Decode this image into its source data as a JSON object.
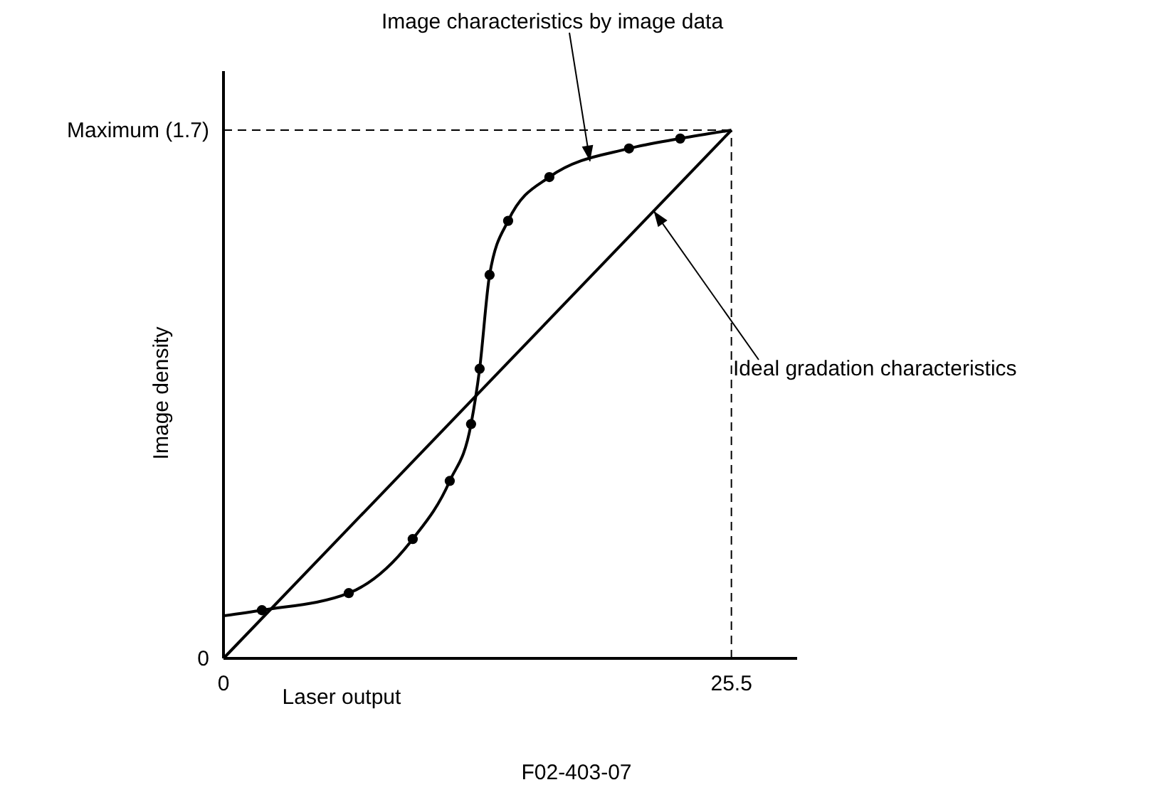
{
  "chart_data": {
    "type": "line",
    "xlabel": "Laser output",
    "ylabel": "Image density",
    "xlim": [
      0,
      28.8
    ],
    "ylim": [
      0,
      1.89
    ],
    "xticks": [
      0,
      25.5
    ],
    "yticks": [
      0,
      {
        "value": 1.7,
        "label": "Maximum (1.7)"
      }
    ],
    "grid": false,
    "line_style": "solid",
    "series": [
      {
        "color": "#000000",
        "marker": "none",
        "x": [
          0,
          1.93,
          6.29,
          9.5,
          11.36,
          12.43,
          12.86,
          13.36,
          14.29,
          16.36,
          20.36,
          22.93,
          25.5
        ],
        "values": [
          0.137,
          0.155,
          0.21,
          0.384,
          0.571,
          0.754,
          0.932,
          1.234,
          1.408,
          1.549,
          1.641,
          1.673,
          1.7
        ]
      },
      {
        "type": "scatter",
        "color": "#000000",
        "marker": "circle",
        "x": [
          1.93,
          6.29,
          9.5,
          11.36,
          12.43,
          12.86,
          13.36,
          14.29,
          16.36,
          20.36,
          22.93
        ],
        "values": [
          0.155,
          0.21,
          0.384,
          0.571,
          0.754,
          0.932,
          1.234,
          1.408,
          1.549,
          1.641,
          1.673
        ]
      },
      {
        "color": "#000000",
        "marker": "none",
        "x": [
          0,
          25.5
        ],
        "values": [
          0,
          1.7
        ]
      }
    ],
    "ref_lines": [
      {
        "axis": "y",
        "value": 1.7,
        "line_style": "dashed",
        "color": "#000000"
      },
      {
        "axis": "x",
        "value": 25.5,
        "line_style": "dashed",
        "color": "#000000"
      }
    ],
    "annotations": [
      {
        "text": "Image characteristics by image data",
        "x": 18.4,
        "y": 1.6
      },
      {
        "text": "Ideal gradation characteristics",
        "x": 21.6,
        "y": 1.44
      },
      "F02-403-07"
    ]
  }
}
